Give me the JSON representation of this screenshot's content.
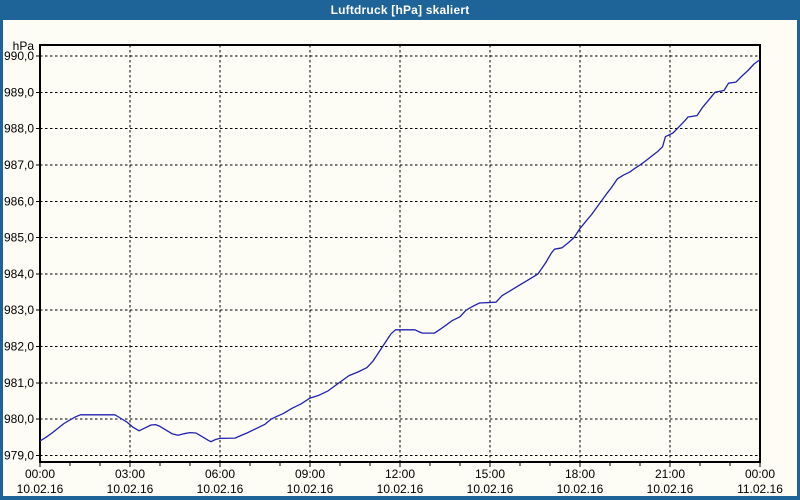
{
  "window": {
    "title": "Luftdruck [hPa] skaliert"
  },
  "colors": {
    "titlebar_bg": "#1f6498",
    "titlebar_text": "#ffffff",
    "window_border": "#1f6498",
    "content_bg": "#fdfdf6",
    "plot_border": "#000000",
    "grid": "#000000",
    "line": "#2121ad",
    "tick_text": "#000000"
  },
  "chart_data": {
    "type": "line",
    "title": "Luftdruck [hPa] skaliert",
    "y_unit_label": "hPa",
    "xlabel": "",
    "ylabel": "hPa",
    "ylim": [
      979.0,
      990.0
    ],
    "xlim_hours": [
      0,
      24
    ],
    "grid": "dashed",
    "legend": "none",
    "y_ticks": [
      {
        "label": "990,0",
        "value": 990.0
      },
      {
        "label": "989,0",
        "value": 989.0
      },
      {
        "label": "988,0",
        "value": 988.0
      },
      {
        "label": "987,0",
        "value": 987.0
      },
      {
        "label": "986,0",
        "value": 986.0
      },
      {
        "label": "985,0",
        "value": 985.0
      },
      {
        "label": "984,0",
        "value": 984.0
      },
      {
        "label": "983,0",
        "value": 983.0
      },
      {
        "label": "982,0",
        "value": 982.0
      },
      {
        "label": "981,0",
        "value": 981.0
      },
      {
        "label": "980,0",
        "value": 980.0
      },
      {
        "label": "979,0",
        "value": 979.0
      }
    ],
    "x_ticks": [
      {
        "hour": 0,
        "time": "00:00",
        "date": "10.02.16"
      },
      {
        "hour": 3,
        "time": "03:00",
        "date": "10.02.16"
      },
      {
        "hour": 6,
        "time": "06:00",
        "date": "10.02.16"
      },
      {
        "hour": 9,
        "time": "09:00",
        "date": "10.02.16"
      },
      {
        "hour": 12,
        "time": "12:00",
        "date": "10.02.16"
      },
      {
        "hour": 15,
        "time": "15:00",
        "date": "10.02.16"
      },
      {
        "hour": 18,
        "time": "18:00",
        "date": "10.02.16"
      },
      {
        "hour": 21,
        "time": "21:00",
        "date": "10.02.16"
      },
      {
        "hour": 24,
        "time": "00:00",
        "date": "11.02.16"
      }
    ],
    "x_minor_tick_every_hours": 1,
    "series": [
      {
        "name": "Luftdruck",
        "color": "#2121ad",
        "points": [
          [
            0.0,
            979.4
          ],
          [
            0.2,
            979.5
          ],
          [
            0.4,
            979.62
          ],
          [
            0.6,
            979.75
          ],
          [
            0.8,
            979.88
          ],
          [
            1.0,
            979.98
          ],
          [
            1.2,
            980.07
          ],
          [
            1.35,
            980.12
          ],
          [
            2.5,
            980.12
          ],
          [
            2.7,
            980.02
          ],
          [
            2.9,
            979.92
          ],
          [
            3.1,
            979.78
          ],
          [
            3.3,
            979.68
          ],
          [
            3.5,
            979.76
          ],
          [
            3.7,
            979.84
          ],
          [
            3.85,
            979.85
          ],
          [
            4.0,
            979.8
          ],
          [
            4.2,
            979.7
          ],
          [
            4.4,
            979.6
          ],
          [
            4.6,
            979.56
          ],
          [
            4.8,
            979.6
          ],
          [
            5.0,
            979.63
          ],
          [
            5.2,
            979.62
          ],
          [
            5.4,
            979.52
          ],
          [
            5.6,
            979.42
          ],
          [
            5.7,
            979.38
          ],
          [
            5.85,
            979.44
          ],
          [
            6.0,
            979.47
          ],
          [
            6.5,
            979.48
          ],
          [
            6.7,
            979.55
          ],
          [
            6.9,
            979.62
          ],
          [
            7.1,
            979.7
          ],
          [
            7.3,
            979.78
          ],
          [
            7.5,
            979.86
          ],
          [
            7.7,
            980.0
          ],
          [
            7.9,
            980.08
          ],
          [
            8.1,
            980.15
          ],
          [
            8.4,
            980.3
          ],
          [
            8.7,
            980.42
          ],
          [
            9.0,
            980.58
          ],
          [
            9.3,
            980.66
          ],
          [
            9.6,
            980.78
          ],
          [
            9.8,
            980.9
          ],
          [
            10.0,
            981.02
          ],
          [
            10.3,
            981.2
          ],
          [
            10.6,
            981.3
          ],
          [
            10.9,
            981.42
          ],
          [
            11.1,
            981.6
          ],
          [
            11.3,
            981.85
          ],
          [
            11.5,
            982.1
          ],
          [
            11.7,
            982.35
          ],
          [
            11.85,
            982.46
          ],
          [
            12.5,
            982.46
          ],
          [
            12.65,
            982.4
          ],
          [
            12.75,
            982.37
          ],
          [
            13.15,
            982.37
          ],
          [
            13.35,
            982.48
          ],
          [
            13.55,
            982.6
          ],
          [
            13.75,
            982.72
          ],
          [
            14.0,
            982.82
          ],
          [
            14.2,
            983.0
          ],
          [
            14.45,
            983.12
          ],
          [
            14.65,
            983.2
          ],
          [
            15.2,
            983.22
          ],
          [
            15.4,
            983.4
          ],
          [
            15.7,
            983.55
          ],
          [
            16.0,
            983.7
          ],
          [
            16.3,
            983.85
          ],
          [
            16.6,
            984.0
          ],
          [
            16.85,
            984.3
          ],
          [
            17.05,
            984.58
          ],
          [
            17.15,
            984.68
          ],
          [
            17.4,
            984.72
          ],
          [
            17.6,
            984.85
          ],
          [
            17.8,
            985.0
          ],
          [
            18.0,
            985.25
          ],
          [
            18.2,
            985.45
          ],
          [
            18.4,
            985.65
          ],
          [
            18.6,
            985.88
          ],
          [
            18.75,
            986.05
          ],
          [
            18.9,
            986.22
          ],
          [
            19.05,
            986.38
          ],
          [
            19.25,
            986.62
          ],
          [
            19.45,
            986.72
          ],
          [
            19.65,
            986.8
          ],
          [
            19.85,
            986.92
          ],
          [
            20.0,
            987.0
          ],
          [
            20.2,
            987.12
          ],
          [
            20.4,
            987.25
          ],
          [
            20.6,
            987.38
          ],
          [
            20.75,
            987.5
          ],
          [
            20.85,
            987.78
          ],
          [
            21.1,
            987.88
          ],
          [
            21.3,
            988.05
          ],
          [
            21.5,
            988.22
          ],
          [
            21.6,
            988.32
          ],
          [
            21.9,
            988.36
          ],
          [
            22.1,
            988.6
          ],
          [
            22.35,
            988.85
          ],
          [
            22.5,
            989.0
          ],
          [
            22.8,
            989.05
          ],
          [
            22.95,
            989.25
          ],
          [
            23.2,
            989.28
          ],
          [
            23.4,
            989.45
          ],
          [
            23.6,
            989.6
          ],
          [
            23.8,
            989.78
          ],
          [
            24.0,
            989.9
          ]
        ]
      }
    ]
  }
}
